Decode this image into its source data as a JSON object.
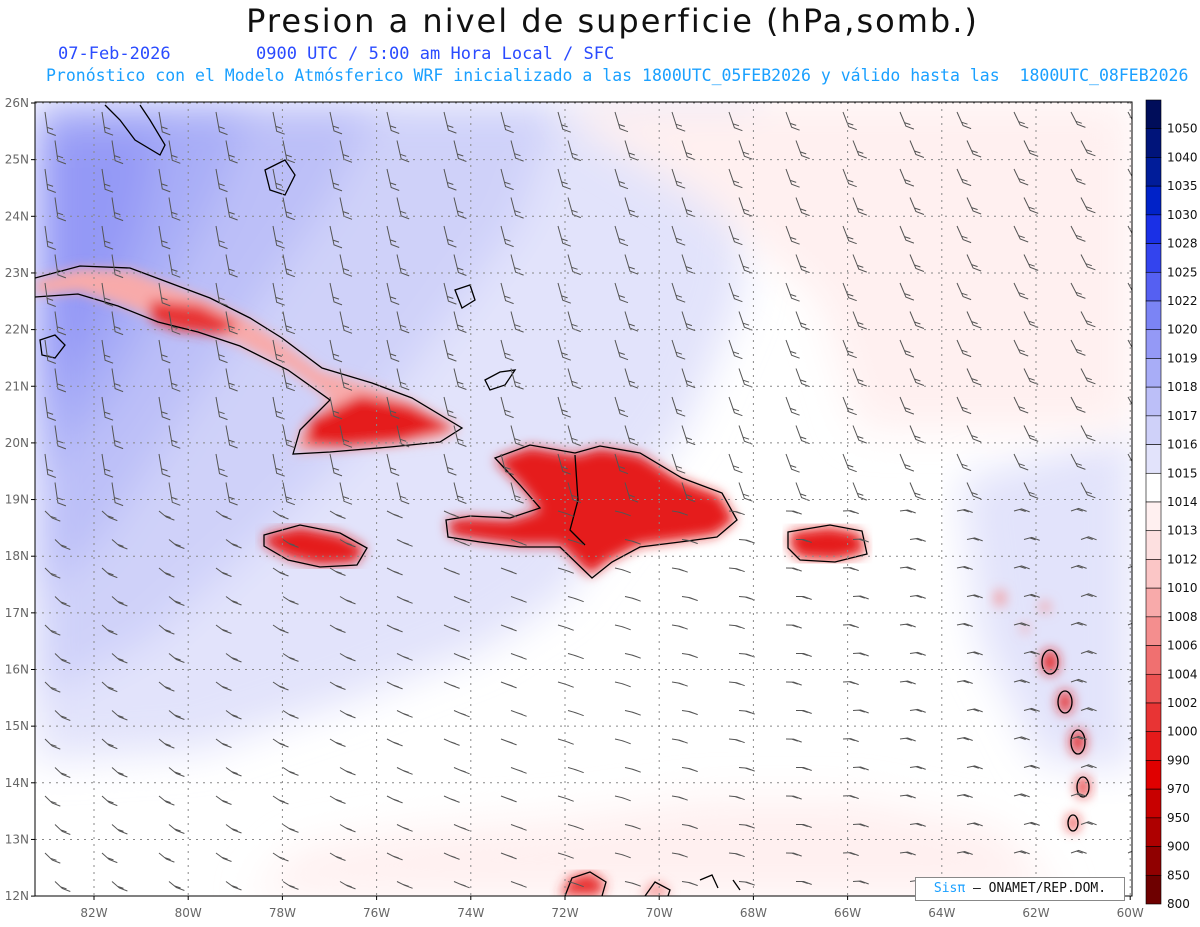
{
  "header": {
    "title": "Presion a nivel de superficie (hPa,somb.)",
    "date": "07-Feb-2026",
    "time": "0900 UTC / 5:00 am Hora Local / SFC",
    "forecast": "Pronóstico con el Modelo Atmósferico WRF inicializado a las 1800UTC_05FEB2026 y válido hasta las  1800UTC_08FEB2026"
  },
  "map": {
    "lat_labels": [
      "26N",
      "25N",
      "24N",
      "23N",
      "22N",
      "21N",
      "20N",
      "19N",
      "18N",
      "17N",
      "16N",
      "15N",
      "14N",
      "13N",
      "12N"
    ],
    "lon_labels": [
      "82W",
      "80W",
      "78W",
      "76W",
      "74W",
      "72W",
      "70W",
      "68W",
      "66W",
      "64W",
      "62W",
      "60W"
    ]
  },
  "colorbar": {
    "levels": [
      "1050",
      "1040",
      "1035",
      "1030",
      "1028",
      "1025",
      "1022",
      "1020",
      "1019",
      "1018",
      "1017",
      "1016",
      "1015",
      "1014",
      "1013",
      "1012",
      "1010",
      "1008",
      "1006",
      "1004",
      "1002",
      "1000",
      "990",
      "970",
      "950",
      "900",
      "850",
      "800"
    ],
    "colors": [
      "#000d5a",
      "#00147a",
      "#001c99",
      "#0022c8",
      "#1a30e6",
      "#3344ee",
      "#5560f2",
      "#7b84f5",
      "#9499f6",
      "#a8adf7",
      "#bcbff8",
      "#cfd1f9",
      "#e2e3fb",
      "#ffffff",
      "#fff0f0",
      "#fde0e0",
      "#fbc6c6",
      "#f8aaaa",
      "#f48e8e",
      "#f07070",
      "#ec5252",
      "#e83434",
      "#e51a1a",
      "#e00000",
      "#c80000",
      "#ae0000",
      "#900000",
      "#6e0000"
    ]
  },
  "credit": {
    "brand": "Sisπ",
    "text": "– ONAMET/REP.DOM."
  }
}
